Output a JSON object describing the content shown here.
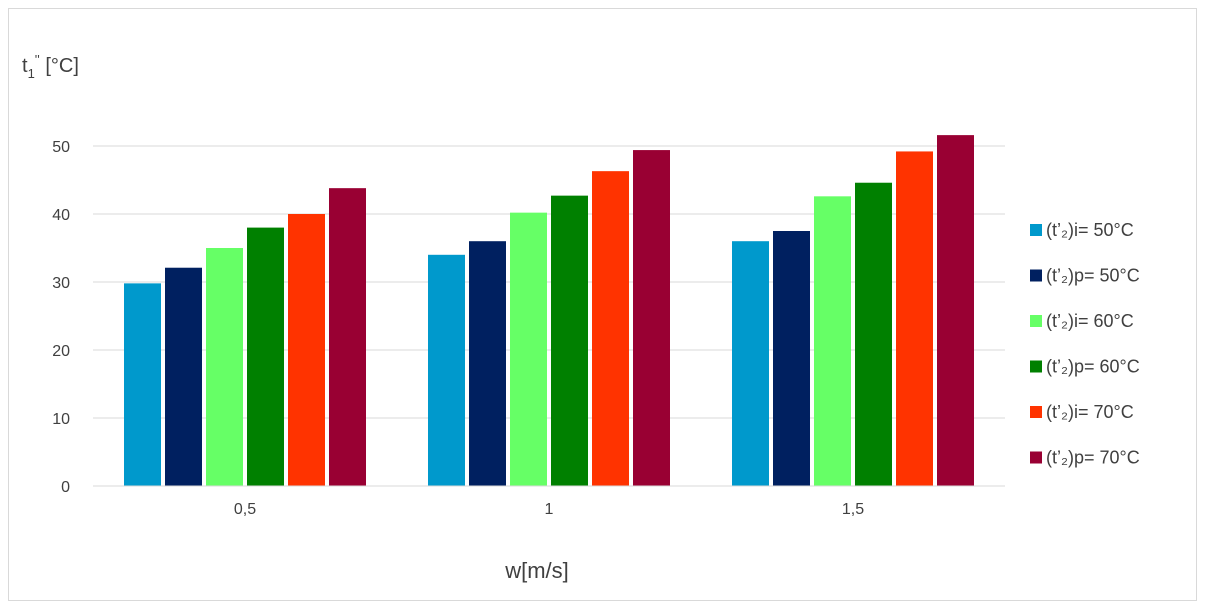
{
  "chart_data": {
    "type": "bar",
    "categories": [
      "0,5",
      "1",
      "1,5"
    ],
    "series": [
      {
        "name": "(t’₂)i= 50°C",
        "color": "#0099CC",
        "values": [
          29.8,
          34,
          36
        ]
      },
      {
        "name": "(t’₂)p= 50°C",
        "color": "#002060",
        "values": [
          32.1,
          36,
          37.5
        ]
      },
      {
        "name": "(t’₂)i= 60°C",
        "color": "#66FF66",
        "values": [
          35,
          40.2,
          42.6
        ]
      },
      {
        "name": "(t’₂)p= 60°C",
        "color": "#008000",
        "values": [
          38,
          42.7,
          44.6
        ]
      },
      {
        "name": "(t’₂)i= 70°C",
        "color": "#FF3300",
        "values": [
          40,
          46.3,
          49.2
        ]
      },
      {
        "name": "(t’₂)p= 70°C",
        "color": "#990033",
        "values": [
          43.8,
          49.4,
          51.6
        ]
      }
    ],
    "ylim": [
      0,
      50
    ],
    "yticks": [
      "0",
      "10",
      "20",
      "30",
      "40",
      "50"
    ],
    "ylabel": {
      "main": "t",
      "sub": "1",
      "sup": "''",
      "unit": " [°C]"
    },
    "xlabel": "w[m/s]",
    "grid": true,
    "legend": "right"
  }
}
